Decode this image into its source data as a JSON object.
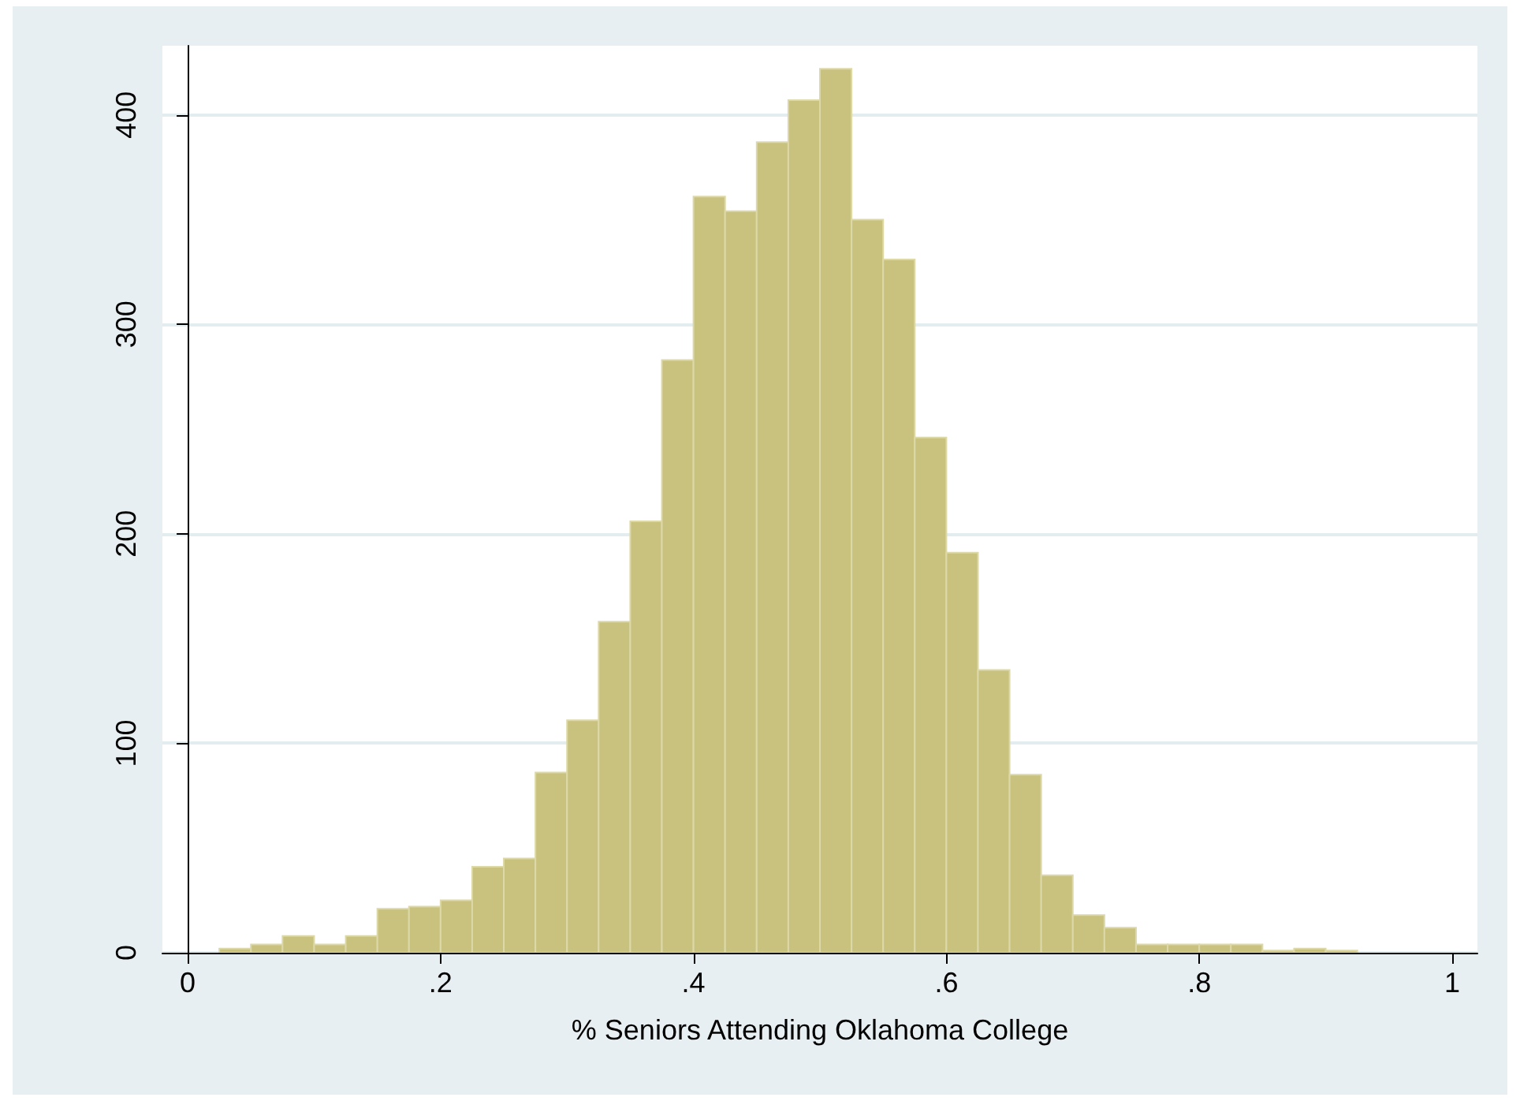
{
  "chart_data": {
    "type": "histogram",
    "xlabel": "% Seniors Attending Oklahoma College",
    "bins": [
      0.025,
      0.05,
      0.075,
      0.1,
      0.125,
      0.15,
      0.175,
      0.2,
      0.225,
      0.25,
      0.275,
      0.3,
      0.325,
      0.35,
      0.375,
      0.4,
      0.425,
      0.45,
      0.475,
      0.5,
      0.525,
      0.55,
      0.575,
      0.6,
      0.625,
      0.65,
      0.675,
      0.7,
      0.725,
      0.75,
      0.775,
      0.8,
      0.825,
      0.85,
      0.875,
      0.9,
      0.925
    ],
    "values": [
      2,
      4,
      8,
      4,
      8,
      21,
      22,
      25,
      41,
      45,
      86,
      111,
      158,
      206,
      283,
      361,
      354,
      387,
      407,
      422,
      350,
      331,
      246,
      191,
      135,
      85,
      37,
      18,
      12,
      4,
      4,
      4,
      4,
      1,
      2,
      1
    ],
    "color": "#c9c27f",
    "xlim": [
      -0.02,
      1.02
    ],
    "xticks": [
      0,
      {
        "value": 0.2,
        "label": ".2"
      },
      {
        "value": 0.4,
        "label": ".4"
      },
      {
        "value": 0.6,
        "label": ".6"
      },
      {
        "value": 0.8,
        "label": ".8"
      },
      1
    ],
    "ylim": [
      0,
      433
    ],
    "yticks": [
      0,
      100,
      200,
      300,
      400
    ],
    "grid": "y"
  }
}
